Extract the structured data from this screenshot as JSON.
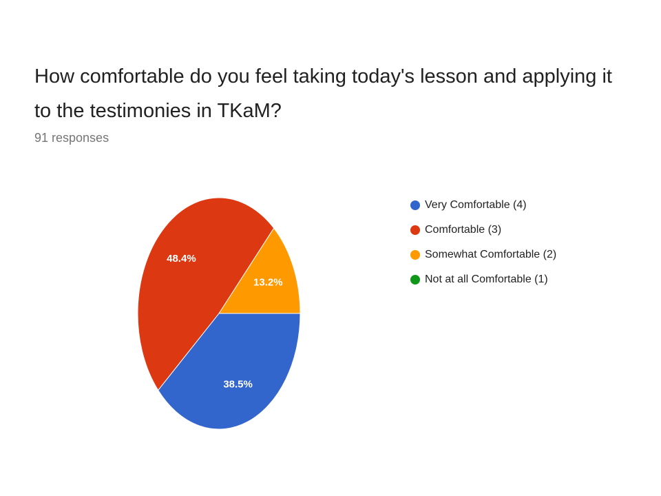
{
  "chart_data": {
    "type": "pie",
    "title": "How comfortable do you feel taking today's lesson and applying it to the testimonies in TKaM?",
    "subtitle": "91 responses",
    "categories": [
      "Very Comfortable (4)",
      "Comfortable (3)",
      "Somewhat Comfortable (2)",
      "Not at all Comfortable (1)"
    ],
    "values": [
      38.5,
      48.4,
      13.2,
      0
    ],
    "value_labels": [
      "38.5%",
      "48.4%",
      "13.2%",
      null
    ],
    "colors": [
      "#3366cc",
      "#dc3912",
      "#ff9900",
      "#109618"
    ],
    "legend": "right"
  }
}
